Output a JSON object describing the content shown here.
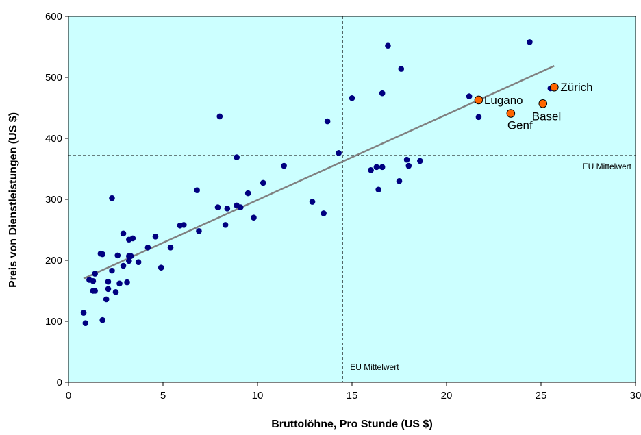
{
  "chart_data": {
    "type": "scatter",
    "title": "",
    "xlabel": "Bruttolöhne, Pro Stunde (US $)",
    "ylabel": "Preis von Dienstleistungen (US $)",
    "xlim": [
      0,
      30
    ],
    "ylim": [
      0,
      600
    ],
    "xticks": [
      0,
      5,
      10,
      15,
      20,
      25,
      30
    ],
    "yticks": [
      0,
      100,
      200,
      300,
      400,
      500,
      600
    ],
    "grid": false,
    "plot_background": "#ccffff",
    "point_color": "#000080",
    "highlight_color": "#ff6600",
    "trendline": {
      "color": "#808080",
      "x": [
        0.8,
        25.7
      ],
      "y": [
        170,
        519
      ]
    },
    "reference_lines": [
      {
        "axis": "x",
        "value": 14.5,
        "label": "EU Mittelwert"
      },
      {
        "axis": "y",
        "value": 372,
        "label": "EU Mittelwert"
      }
    ],
    "series": [
      {
        "points": [
          [
            0.8,
            114
          ],
          [
            0.9,
            97
          ],
          [
            1.1,
            168
          ],
          [
            1.3,
            150
          ],
          [
            1.3,
            166
          ],
          [
            1.4,
            178
          ],
          [
            1.4,
            150
          ],
          [
            1.7,
            211
          ],
          [
            1.8,
            210
          ],
          [
            1.8,
            102
          ],
          [
            2.0,
            136
          ],
          [
            2.1,
            165
          ],
          [
            2.1,
            153
          ],
          [
            2.3,
            302
          ],
          [
            2.3,
            183
          ],
          [
            2.5,
            148
          ],
          [
            2.6,
            208
          ],
          [
            2.7,
            162
          ],
          [
            2.9,
            244
          ],
          [
            2.9,
            191
          ],
          [
            3.1,
            164
          ],
          [
            3.2,
            234
          ],
          [
            3.2,
            207
          ],
          [
            3.2,
            199
          ],
          [
            3.3,
            207
          ],
          [
            3.4,
            236
          ],
          [
            3.7,
            197
          ],
          [
            4.2,
            221
          ],
          [
            4.6,
            239
          ],
          [
            4.9,
            188
          ],
          [
            5.4,
            221
          ],
          [
            5.9,
            257
          ],
          [
            6.1,
            258
          ],
          [
            6.8,
            315
          ],
          [
            6.9,
            248
          ],
          [
            7.9,
            287
          ],
          [
            8.0,
            436
          ],
          [
            8.3,
            258
          ],
          [
            8.4,
            285
          ],
          [
            8.9,
            369
          ],
          [
            8.9,
            290
          ],
          [
            9.1,
            287
          ],
          [
            9.5,
            310
          ],
          [
            9.8,
            270
          ],
          [
            10.3,
            327
          ],
          [
            11.4,
            355
          ],
          [
            12.9,
            296
          ],
          [
            13.5,
            277
          ],
          [
            13.7,
            428
          ],
          [
            14.3,
            376
          ],
          [
            15.0,
            466
          ],
          [
            16.0,
            348
          ],
          [
            16.3,
            353
          ],
          [
            16.4,
            316
          ],
          [
            16.6,
            353
          ],
          [
            16.6,
            474
          ],
          [
            16.9,
            552
          ],
          [
            17.5,
            330
          ],
          [
            17.6,
            514
          ],
          [
            17.9,
            365
          ],
          [
            18.0,
            355
          ],
          [
            18.6,
            363
          ],
          [
            21.2,
            469
          ],
          [
            21.7,
            435
          ],
          [
            24.4,
            558
          ],
          [
            25.5,
            482
          ]
        ]
      },
      {
        "highlighted": true,
        "points": [
          {
            "x": 21.7,
            "y": 463,
            "label": "Lugano"
          },
          {
            "x": 23.4,
            "y": 441,
            "label": "Genf"
          },
          {
            "x": 25.1,
            "y": 457,
            "label": "Basel"
          },
          {
            "x": 25.7,
            "y": 484,
            "label": "Zürich"
          }
        ]
      }
    ]
  }
}
